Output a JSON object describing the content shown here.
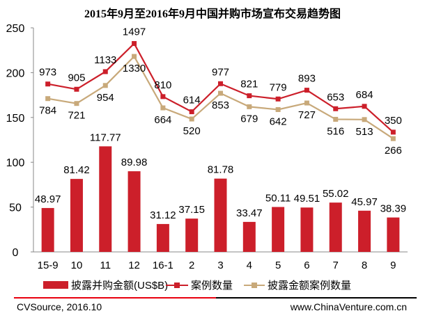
{
  "chart_data": {
    "type": "bar+line",
    "title": "2015年9月至2016年9月中国并购市场宣布交易趋势图",
    "categories": [
      "15-9",
      "10",
      "11",
      "12",
      "16-1",
      "2",
      "3",
      "4",
      "5",
      "6",
      "7",
      "8",
      "9"
    ],
    "ylim": [
      0,
      250
    ],
    "yticks": [
      0,
      50,
      100,
      150,
      200,
      250
    ],
    "secondary_ylim": [
      -1200,
      1700
    ],
    "grid": false,
    "legend_position": "bottom",
    "series": [
      {
        "name": "披露并购金额(US$B)",
        "kind": "bar",
        "color": "#cc1f2a",
        "axis": "primary",
        "values": [
          48.97,
          81.42,
          117.77,
          89.98,
          31.12,
          37.15,
          81.78,
          33.47,
          50.11,
          49.51,
          55.02,
          45.97,
          38.39
        ]
      },
      {
        "name": "案例数量",
        "kind": "line",
        "color": "#cc1f2a",
        "axis": "secondary",
        "values": [
          973,
          905,
          1133,
          1497,
          810,
          614,
          977,
          821,
          779,
          893,
          653,
          684,
          350
        ]
      },
      {
        "name": "披露金额案例数量",
        "kind": "line",
        "color": "#c8a97a",
        "axis": "secondary",
        "values": [
          784,
          721,
          954,
          1330,
          664,
          520,
          853,
          679,
          642,
          727,
          516,
          513,
          266
        ]
      }
    ]
  },
  "footer": {
    "source": "CVSource, 2016.10",
    "website": "www.ChinaVenture.com.cn"
  }
}
